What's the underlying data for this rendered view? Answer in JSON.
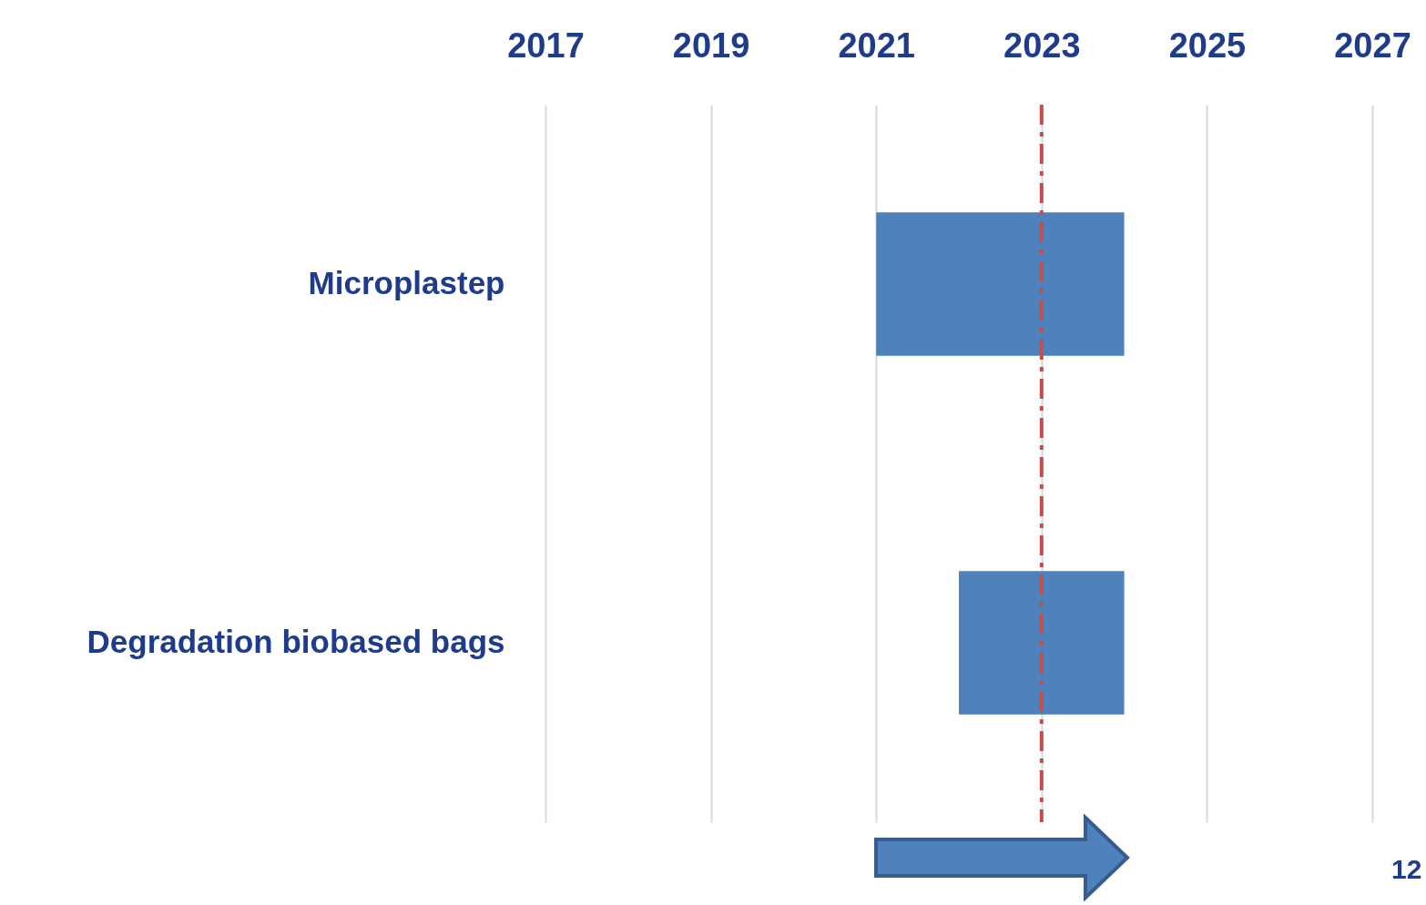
{
  "chart_data": {
    "type": "bar",
    "orientation": "horizontal",
    "categories": [
      "Microplastep",
      "Degradation biobased bags"
    ],
    "base": [
      2021,
      2022
    ],
    "values": [
      3,
      2
    ],
    "color": "#4f81bd",
    "xlim": [
      2017,
      2027
    ],
    "xticks": [
      2017,
      2019,
      2021,
      2023,
      2025,
      2027
    ],
    "grid": "x",
    "ref_lines": [
      {
        "axis": "x",
        "value": 2023,
        "color": "#c0504d",
        "line_style": "dashed"
      }
    ],
    "annotations": [
      "12"
    ]
  }
}
